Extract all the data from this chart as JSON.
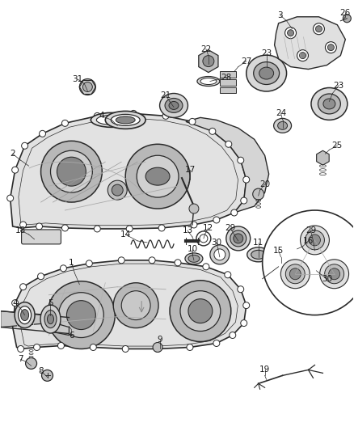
{
  "background_color": "#ffffff",
  "line_color": "#2a2a2a",
  "label_color": "#1a1a1a",
  "figsize": [
    4.38,
    5.33
  ],
  "dpi": 100,
  "label_fontsize": 7.5,
  "leader_lw": 0.5,
  "part_lw": 0.9,
  "case_fill": "#e8e8e8",
  "case_fill_dark": "#c8c8c8",
  "case_fill_light": "#f0f0f0",
  "metal_gray": "#d0d0d0",
  "dark_gray": "#888888"
}
